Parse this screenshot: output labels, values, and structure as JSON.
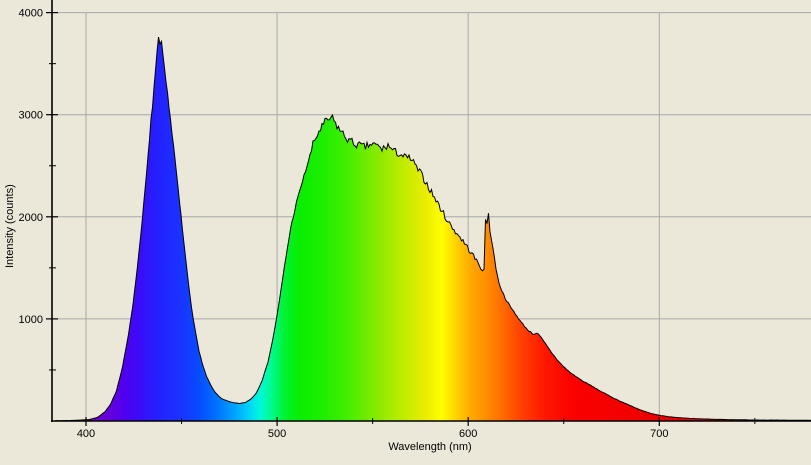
{
  "colors": {
    "background": "#ebe8da",
    "grid": "#a8a8a8",
    "axis": "#000000",
    "curve_outline": "#000000"
  },
  "chart_data": {
    "type": "area",
    "title": "",
    "xlabel": "Wavelength (nm)",
    "ylabel": "Intensity (counts)",
    "grid": true,
    "legend": "none",
    "x_axis": {
      "min": 382,
      "max": 780,
      "major_ticks": [
        400,
        500,
        600,
        700
      ],
      "major_tick_labels": [
        "400",
        "500",
        "600",
        "700"
      ],
      "minor_ticks": [
        450,
        550,
        650,
        750
      ]
    },
    "y_axis": {
      "min": 0,
      "max": 4100,
      "major_ticks": [
        1000,
        2000,
        3000,
        4000
      ],
      "major_tick_labels": [
        "1000",
        "2000",
        "3000",
        "4000"
      ],
      "minor_ticks": [
        500,
        1500,
        2500,
        3500
      ]
    },
    "annotated_features": {
      "blue_peak": {
        "wavelength_nm": 438,
        "intensity_counts": 3730
      },
      "phosphor_hump_peak": {
        "wavelength_nm": 527,
        "intensity_counts": 2955
      },
      "valley": {
        "wavelength_nm": 478,
        "intensity_counts": 172
      },
      "notch_before_spike": {
        "wavelength_nm": 608,
        "intensity_counts": 1480
      },
      "red_spike": {
        "wavelength_nm": 610,
        "intensity_counts": 2130
      }
    },
    "series": [
      {
        "name": "spectrum",
        "points": [
          [
            383,
            1
          ],
          [
            385,
            3
          ],
          [
            392,
            5
          ],
          [
            398,
            10
          ],
          [
            402,
            16
          ],
          [
            406,
            35
          ],
          [
            410,
            90
          ],
          [
            413,
            170
          ],
          [
            416,
            300
          ],
          [
            419,
            520
          ],
          [
            422,
            820
          ],
          [
            425,
            1200
          ],
          [
            428,
            1700
          ],
          [
            431,
            2280
          ],
          [
            433,
            2700
          ],
          [
            435,
            3150
          ],
          [
            436.5,
            3450
          ],
          [
            437.5,
            3650
          ],
          [
            438,
            3730
          ],
          [
            438.7,
            3660
          ],
          [
            439.4,
            3740
          ],
          [
            440,
            3580
          ],
          [
            441,
            3450
          ],
          [
            442,
            3300
          ],
          [
            443.5,
            3080
          ],
          [
            445,
            2820
          ],
          [
            446.5,
            2580
          ],
          [
            448,
            2300
          ],
          [
            449.5,
            2050
          ],
          [
            451,
            1780
          ],
          [
            452.5,
            1530
          ],
          [
            454,
            1290
          ],
          [
            455.5,
            1080
          ],
          [
            457,
            900
          ],
          [
            459,
            700
          ],
          [
            461,
            550
          ],
          [
            463,
            440
          ],
          [
            465,
            360
          ],
          [
            467,
            295
          ],
          [
            469,
            250
          ],
          [
            471,
            220
          ],
          [
            474,
            195
          ],
          [
            477,
            178
          ],
          [
            480,
            172
          ],
          [
            483,
            178
          ],
          [
            486,
            210
          ],
          [
            489,
            270
          ],
          [
            492,
            390
          ],
          [
            495,
            560
          ],
          [
            498,
            820
          ],
          [
            501,
            1150
          ],
          [
            504,
            1530
          ],
          [
            507,
            1880
          ],
          [
            510,
            2130
          ],
          [
            513,
            2330
          ],
          [
            516,
            2520
          ],
          [
            519,
            2720
          ],
          [
            522,
            2840
          ],
          [
            525,
            2920
          ],
          [
            527,
            2955
          ],
          [
            529,
            2960
          ],
          [
            531,
            2900
          ],
          [
            534,
            2820
          ],
          [
            537,
            2760
          ],
          [
            540,
            2720
          ],
          [
            543,
            2700
          ],
          [
            546,
            2680
          ],
          [
            549,
            2710
          ],
          [
            552,
            2700
          ],
          [
            555,
            2660
          ],
          [
            558,
            2700
          ],
          [
            561,
            2640
          ],
          [
            564,
            2620
          ],
          [
            567,
            2580
          ],
          [
            570,
            2570
          ],
          [
            573,
            2480
          ],
          [
            576,
            2400
          ],
          [
            579,
            2300
          ],
          [
            582,
            2200
          ],
          [
            585,
            2100
          ],
          [
            588,
            2000
          ],
          [
            591,
            1910
          ],
          [
            594,
            1840
          ],
          [
            597,
            1770
          ],
          [
            600,
            1690
          ],
          [
            603,
            1610
          ],
          [
            605,
            1550
          ],
          [
            607,
            1495
          ],
          [
            608.3,
            1480
          ],
          [
            608.8,
            1700
          ],
          [
            609.2,
            2130
          ],
          [
            609.7,
            1950
          ],
          [
            610.2,
            1900
          ],
          [
            610.7,
            2060
          ],
          [
            611.2,
            1880
          ],
          [
            612,
            1790
          ],
          [
            613,
            1690
          ],
          [
            614,
            1560
          ],
          [
            615,
            1440
          ],
          [
            616.5,
            1330
          ],
          [
            618,
            1260
          ],
          [
            620,
            1180
          ],
          [
            622,
            1120
          ],
          [
            625,
            1040
          ],
          [
            628,
            960
          ],
          [
            631,
            895
          ],
          [
            634,
            850
          ],
          [
            636,
            862
          ],
          [
            638,
            820
          ],
          [
            641,
            740
          ],
          [
            644,
            660
          ],
          [
            647,
            590
          ],
          [
            650,
            530
          ],
          [
            653,
            480
          ],
          [
            656,
            440
          ],
          [
            660,
            390
          ],
          [
            664,
            350
          ],
          [
            668,
            305
          ],
          [
            672,
            265
          ],
          [
            676,
            225
          ],
          [
            680,
            190
          ],
          [
            684,
            158
          ],
          [
            688,
            125
          ],
          [
            692,
            95
          ],
          [
            696,
            72
          ],
          [
            700,
            55
          ],
          [
            705,
            42
          ],
          [
            710,
            33
          ],
          [
            716,
            26
          ],
          [
            722,
            21
          ],
          [
            728,
            17
          ],
          [
            735,
            14
          ],
          [
            742,
            12
          ],
          [
            750,
            10
          ],
          [
            758,
            9
          ],
          [
            766,
            8
          ],
          [
            775,
            7
          ],
          [
            779.6,
            7
          ]
        ]
      }
    ],
    "spectral_gradient": [
      [
        388,
        "#55008c"
      ],
      [
        400,
        "#6a00b0"
      ],
      [
        410,
        "#6a00d8"
      ],
      [
        420,
        "#5000ee"
      ],
      [
        428,
        "#3a0cfa"
      ],
      [
        437,
        "#2420ff"
      ],
      [
        448,
        "#1c30ff"
      ],
      [
        458,
        "#0848ff"
      ],
      [
        468,
        "#0070ff"
      ],
      [
        478,
        "#00a4ff"
      ],
      [
        486,
        "#00d8f8"
      ],
      [
        491,
        "#00f8d8"
      ],
      [
        497,
        "#00fa90"
      ],
      [
        504,
        "#00f232"
      ],
      [
        512,
        "#0aee00"
      ],
      [
        525,
        "#20ee00"
      ],
      [
        538,
        "#48ee00"
      ],
      [
        552,
        "#86ea00"
      ],
      [
        565,
        "#bcec00"
      ],
      [
        578,
        "#ecec00"
      ],
      [
        586,
        "#ffff00"
      ],
      [
        594,
        "#ffd000"
      ],
      [
        601,
        "#ffaa00"
      ],
      [
        609,
        "#ff9000"
      ],
      [
        617,
        "#ff7000"
      ],
      [
        627,
        "#ff4400"
      ],
      [
        640,
        "#ff1800"
      ],
      [
        655,
        "#fa0000"
      ],
      [
        700,
        "#ee0000"
      ],
      [
        779,
        "#e00000"
      ]
    ]
  }
}
